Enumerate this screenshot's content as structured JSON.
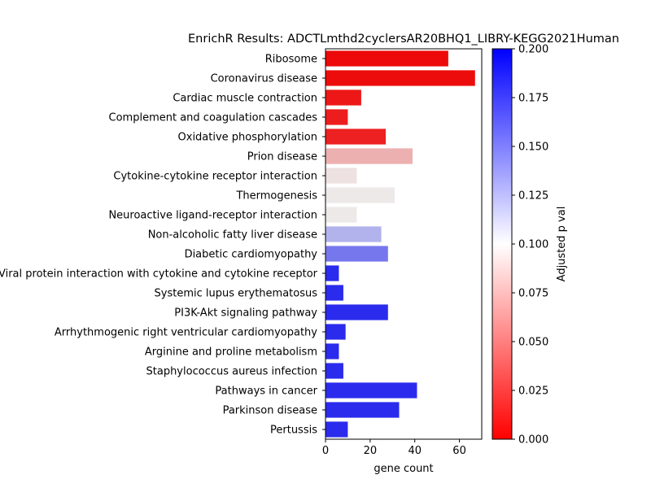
{
  "chart_data": {
    "type": "bar",
    "orientation": "horizontal",
    "title": "EnrichR Results: ADCTLmthd2cyclersAR20BHQ1_LIBRY-KEGG2021Human",
    "xlabel": "gene count",
    "ylabel": "",
    "xlim": [
      0,
      70
    ],
    "xticks": [
      "0",
      "20",
      "40",
      "60"
    ],
    "grid": false,
    "categories": [
      "Ribosome",
      "Coronavirus disease",
      "Cardiac muscle contraction",
      "Complement and coagulation cascades",
      "Oxidative phosphorylation",
      "Prion disease",
      "Cytokine-cytokine receptor interaction",
      "Thermogenesis",
      "Neuroactive ligand-receptor interaction",
      "Non-alcoholic fatty liver disease",
      "Diabetic cardiomyopathy",
      "Viral protein interaction with cytokine and cytokine receptor",
      "Systemic lupus erythematosus",
      "PI3K-Akt signaling pathway",
      "Arrhythmogenic right ventricular cardiomyopathy",
      "Arginine and proline metabolism",
      "Staphylococcus aureus infection",
      "Pathways in cancer",
      "Parkinson disease",
      "Pertussis"
    ],
    "values": [
      55,
      67,
      16,
      10,
      27,
      39,
      14,
      31,
      14,
      25,
      28,
      6,
      8,
      28,
      9,
      6,
      8,
      41,
      33,
      10
    ],
    "adjusted_p_values": [
      0.004,
      0.005,
      0.01,
      0.012,
      0.014,
      0.074,
      0.095,
      0.098,
      0.098,
      0.125,
      0.15,
      0.182,
      0.182,
      0.182,
      0.182,
      0.182,
      0.182,
      0.182,
      0.182,
      0.182
    ],
    "colorbar": {
      "label": "Adjusted p val",
      "range": [
        0,
        0.2
      ],
      "ticks": [
        "0.000",
        "0.025",
        "0.050",
        "0.075",
        "0.100",
        "0.125",
        "0.150",
        "0.175",
        "0.200"
      ],
      "colormap": [
        "#ff0000",
        "#ffffff",
        "#0000ff"
      ]
    }
  }
}
